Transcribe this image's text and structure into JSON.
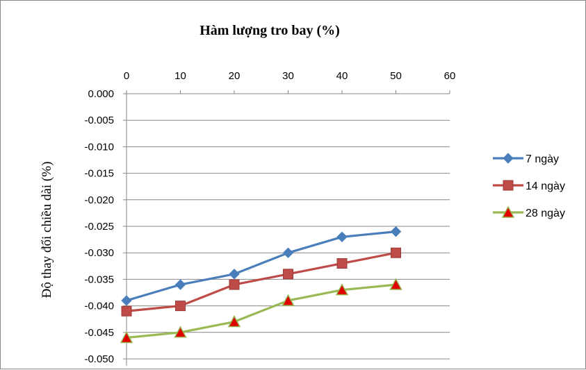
{
  "chart_data": {
    "type": "line",
    "title": "Hàm lượng tro bay (%)",
    "xlabel": "",
    "ylabel": "Độ thay đổi chiều dài (%)",
    "x": [
      0,
      10,
      20,
      30,
      40,
      50
    ],
    "x_ticks": [
      "0",
      "10",
      "20",
      "30",
      "40",
      "50",
      "60"
    ],
    "xlim": [
      0,
      60
    ],
    "y_ticks": [
      "0.000",
      "-0.005",
      "-0.010",
      "-0.015",
      "-0.020",
      "-0.025",
      "-0.030",
      "-0.035",
      "-0.040",
      "-0.045",
      "-0.050"
    ],
    "ylim": [
      -0.05,
      0
    ],
    "x_axis_position": "top",
    "grid": "horizontal",
    "legend_position": "right",
    "series": [
      {
        "name": "7 ngày",
        "values": [
          -0.039,
          -0.036,
          -0.034,
          -0.03,
          -0.027,
          -0.026
        ],
        "color": "#4a7ebb",
        "marker": "diamond",
        "marker_color": "#4a7ebb"
      },
      {
        "name": "14 ngày",
        "values": [
          -0.041,
          -0.04,
          -0.036,
          -0.034,
          -0.032,
          -0.03
        ],
        "color": "#be4b48",
        "marker": "square",
        "marker_color": "#be4b48"
      },
      {
        "name": "28 ngày",
        "values": [
          -0.046,
          -0.045,
          -0.043,
          -0.039,
          -0.037,
          -0.036
        ],
        "color": "#98b954",
        "marker": "triangle",
        "marker_color": "#e00000"
      }
    ]
  }
}
